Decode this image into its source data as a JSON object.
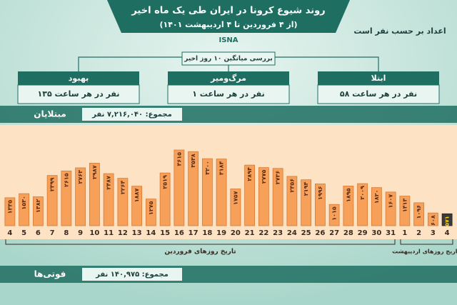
{
  "header": {
    "title": "روند شیوع کرونا در ایران طی یک ماه اخیر",
    "subtitle": "(از ۴ فروردین تا ۴ اردیبهشت ۱۴۰۱)",
    "brand": "ISNA",
    "note": "اعداد بر حسب نفر است"
  },
  "summary": {
    "title": "بررسی میانگین ۱۰ روز اخیر",
    "boxes": [
      {
        "label": "بهبود",
        "text": "۱۳۵ نفر در هر ساعت"
      },
      {
        "label": "مرگ‌ومیر",
        "text": "۱ نفر در هر ساعت"
      },
      {
        "label": "ابتلا",
        "text": "۵۸ نفر در هر ساعت"
      }
    ]
  },
  "chart_data": {
    "type": "bar",
    "title": "مبتلایان",
    "total": "مجموع: ۷,۲۱۶,۰۴۰ نفر",
    "categories": [
      "4",
      "5",
      "6",
      "7",
      "8",
      "9",
      "10",
      "11",
      "12",
      "13",
      "14",
      "15",
      "16",
      "17",
      "18",
      "19",
      "20",
      "21",
      "22",
      "23",
      "24",
      "25",
      "26",
      "27",
      "28",
      "29",
      "30",
      "31",
      "1",
      "2",
      "3",
      "4"
    ],
    "values": [
      1335,
      1530,
      1382,
      2399,
      2615,
      2763,
      2987,
      2487,
      2264,
      1887,
      1275,
      2519,
      3615,
      3538,
      3200,
      3184,
      1757,
      2894,
      2775,
      2736,
      2356,
      2194,
      1996,
      1015,
      1895,
      2009,
      1820,
      1607,
      1413,
      1096,
      608,
      571
    ],
    "value_labels": [
      "۱۳۳۵",
      "۱۵۳۰",
      "۱۳۸۲",
      "۲۳۹۹",
      "۲۶۱۵",
      "۲۷۶۳",
      "۲۹۸۷",
      "۲۴۸۷",
      "۲۲۶۴",
      "۱۸۸۷",
      "۱۲۷۵",
      "۲۵۱۹",
      "۳۶۱۵",
      "۳۵۳۸",
      "۳۲۰۰",
      "۳۱۸۴",
      "۱۷۵۷",
      "۲۸۹۴",
      "۲۷۷۵",
      "۲۷۳۶",
      "۲۳۵۶",
      "۲۱۹۴",
      "۱۹۹۶",
      "۱۰۱۵",
      "۱۸۹۵",
      "۲۰۰۹",
      "۱۸۲۰",
      "۱۶۰۷",
      "۱۴۱۳",
      "۱۰۹۶",
      "۶۰۸",
      "۵۷۱"
    ],
    "color": "#f6a05a",
    "highlight_color": "#3a3a3a",
    "xlabels": [
      "تاریخ روزهای فروردین",
      "تاریخ روزهای اردیبهشت"
    ]
  },
  "deaths": {
    "title": "فوتی‌ها",
    "total": "مجموع: ۱۴۰,۹۷۵ نفر"
  }
}
